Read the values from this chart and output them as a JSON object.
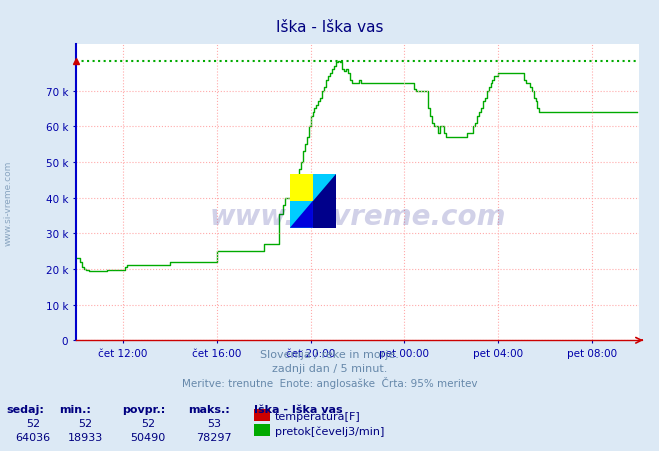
{
  "title": "Iška - Iška vas",
  "title_color": "#000080",
  "bg_color": "#dce9f5",
  "plot_bg_color": "#ffffff",
  "grid_color": "#ffaaaa",
  "spine_color": "#0000cc",
  "axis_bottom_color": "#cc0000",
  "ylabel_color": "#0000aa",
  "xlabel_color": "#0000aa",
  "xlim": [
    0,
    288
  ],
  "ylim": [
    0,
    83000
  ],
  "yticks": [
    0,
    10000,
    20000,
    30000,
    40000,
    50000,
    60000,
    70000
  ],
  "ytick_labels": [
    "0",
    "10 k",
    "20 k",
    "30 k",
    "40 k",
    "50 k",
    "60 k",
    "70 k"
  ],
  "xtick_positions": [
    24,
    72,
    120,
    168,
    216,
    264
  ],
  "xtick_labels": [
    "čet 12:00",
    "čet 16:00",
    "čet 20:00",
    "pet 00:00",
    "pet 04:00",
    "pet 08:00"
  ],
  "max_line_value": 78297,
  "max_line_color": "#00aa00",
  "subtitle1": "Slovenija / reke in morje.",
  "subtitle2": "zadnji dan / 5 minut.",
  "subtitle3": "Meritve: trenutne  Enote: anglosaške  Črta: 95% meritev",
  "subtitle_color": "#6688aa",
  "watermark": "www.si-vreme.com",
  "watermark_color": "#000080",
  "watermark_alpha": 0.18,
  "side_watermark": "www.si-vreme.com",
  "table_headers": [
    "sedaj:",
    "min.:",
    "povpr.:",
    "maks.:"
  ],
  "table_row1": [
    "52",
    "52",
    "52",
    "53"
  ],
  "table_row2": [
    "64036",
    "18933",
    "50490",
    "78297"
  ],
  "legend_title": "Iška - Iška vas",
  "legend_items": [
    {
      "label": "temperatura[F]",
      "color": "#cc0000"
    },
    {
      "label": "pretok[čevelj3/min]",
      "color": "#00aa00"
    }
  ],
  "pretok_data": [
    23000,
    23000,
    22000,
    20500,
    20000,
    19700,
    19700,
    19500,
    19500,
    19500,
    19500,
    19500,
    19500,
    19500,
    19500,
    19500,
    19700,
    19700,
    19700,
    19700,
    19700,
    19700,
    19700,
    19700,
    19700,
    20500,
    21000,
    21000,
    21000,
    21000,
    21000,
    21000,
    21000,
    21000,
    21000,
    21000,
    21000,
    21000,
    21000,
    21000,
    21000,
    21000,
    21000,
    21000,
    21000,
    21000,
    21000,
    21000,
    22000,
    22000,
    22000,
    22000,
    22000,
    22000,
    22000,
    22000,
    22000,
    22000,
    22000,
    22000,
    22000,
    22000,
    22000,
    22000,
    22000,
    22000,
    22000,
    22000,
    22000,
    22000,
    22000,
    22000,
    25000,
    25000,
    25000,
    25000,
    25000,
    25000,
    25000,
    25000,
    25000,
    25000,
    25000,
    25000,
    25000,
    25000,
    25000,
    25000,
    25000,
    25000,
    25000,
    25000,
    25000,
    25000,
    25000,
    25000,
    27000,
    27000,
    27000,
    27000,
    27000,
    27000,
    27000,
    27000,
    35500,
    35500,
    38000,
    40000,
    40000,
    40000,
    40000,
    40000,
    44000,
    46000,
    48000,
    50000,
    53000,
    55000,
    57000,
    60000,
    63000,
    64000,
    65000,
    66000,
    67000,
    68000,
    70000,
    71000,
    73000,
    74000,
    75000,
    76000,
    77000,
    78000,
    78297,
    78000,
    76000,
    75500,
    76000,
    75000,
    73000,
    72000,
    72000,
    72000,
    72000,
    73000,
    72000,
    72000,
    72000,
    72000,
    72000,
    72000,
    72000,
    72000,
    72000,
    72000,
    72000,
    72000,
    72000,
    72000,
    72000,
    72000,
    72000,
    72000,
    72000,
    72000,
    72000,
    72000,
    72000,
    72000,
    72000,
    72000,
    72000,
    70500,
    70000,
    70000,
    70000,
    70000,
    70000,
    70000,
    65000,
    63000,
    61000,
    60000,
    60000,
    58000,
    60000,
    60000,
    58000,
    57000,
    57000,
    57000,
    57000,
    57000,
    57000,
    57000,
    57000,
    57000,
    57000,
    57000,
    58000,
    58000,
    58000,
    60000,
    61000,
    63000,
    64000,
    65000,
    67000,
    68000,
    70000,
    71000,
    72000,
    73000,
    74000,
    74000,
    75000,
    75000,
    75000,
    75000,
    75000,
    75000,
    75000,
    75000,
    75000,
    75000,
    75000,
    75000,
    75000,
    73000,
    72000,
    72000,
    71000,
    70000,
    68000,
    67000,
    65000,
    64000,
    64000,
    64000,
    64000,
    64000,
    64000,
    64000,
    64036,
    64036,
    64036,
    64036,
    64036,
    64036,
    64036,
    64036,
    64036,
    64036,
    64036,
    64036,
    64036,
    64036,
    64036,
    64036,
    64036,
    64036,
    64036,
    64036,
    64036,
    64036,
    64036,
    64036,
    64036,
    64036,
    64036,
    64036,
    64036,
    64036,
    64036,
    64036,
    64036,
    64036,
    64036,
    64036,
    64036,
    64036,
    64036,
    64036,
    64036,
    64036,
    64036,
    64036
  ],
  "dpi": 100,
  "figsize": [
    6.59,
    4.52
  ]
}
